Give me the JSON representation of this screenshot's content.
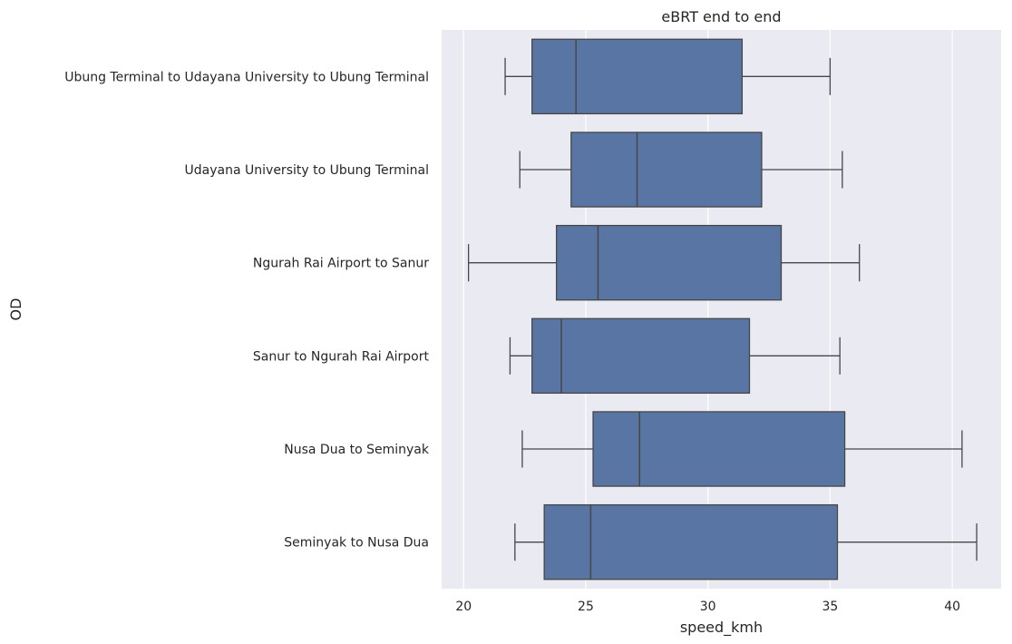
{
  "chart_data": {
    "type": "boxplot",
    "orientation": "horizontal",
    "title": "eBRT end to end",
    "xlabel": "speed_kmh",
    "ylabel": "OD",
    "xlim": [
      19.1,
      42.0
    ],
    "xticks": [
      20,
      25,
      30,
      35,
      40
    ],
    "grid": true,
    "colors": {
      "background": "#EAEAF2",
      "grid": "#FFFFFF",
      "box": "#5975A4",
      "line": "#474747"
    },
    "categories": [
      "Ubung Terminal to Udayana University to Ubung Terminal",
      "Udayana University to Ubung Terminal",
      "Ngurah Rai Airport to Sanur",
      "Sanur to Ngurah Rai Airport",
      "Nusa Dua to Seminyak",
      "Seminyak to Nusa Dua"
    ],
    "boxes": [
      {
        "whisker_low": 21.7,
        "q1": 22.8,
        "median": 24.6,
        "q3": 31.4,
        "whisker_high": 35.0
      },
      {
        "whisker_low": 22.3,
        "q1": 24.4,
        "median": 27.1,
        "q3": 32.2,
        "whisker_high": 35.5
      },
      {
        "whisker_low": 20.2,
        "q1": 23.8,
        "median": 25.5,
        "q3": 33.0,
        "whisker_high": 36.2
      },
      {
        "whisker_low": 21.9,
        "q1": 22.8,
        "median": 24.0,
        "q3": 31.7,
        "whisker_high": 35.4
      },
      {
        "whisker_low": 22.4,
        "q1": 25.3,
        "median": 27.2,
        "q3": 35.6,
        "whisker_high": 40.4
      },
      {
        "whisker_low": 22.1,
        "q1": 23.3,
        "median": 25.2,
        "q3": 35.3,
        "whisker_high": 41.0
      }
    ]
  }
}
